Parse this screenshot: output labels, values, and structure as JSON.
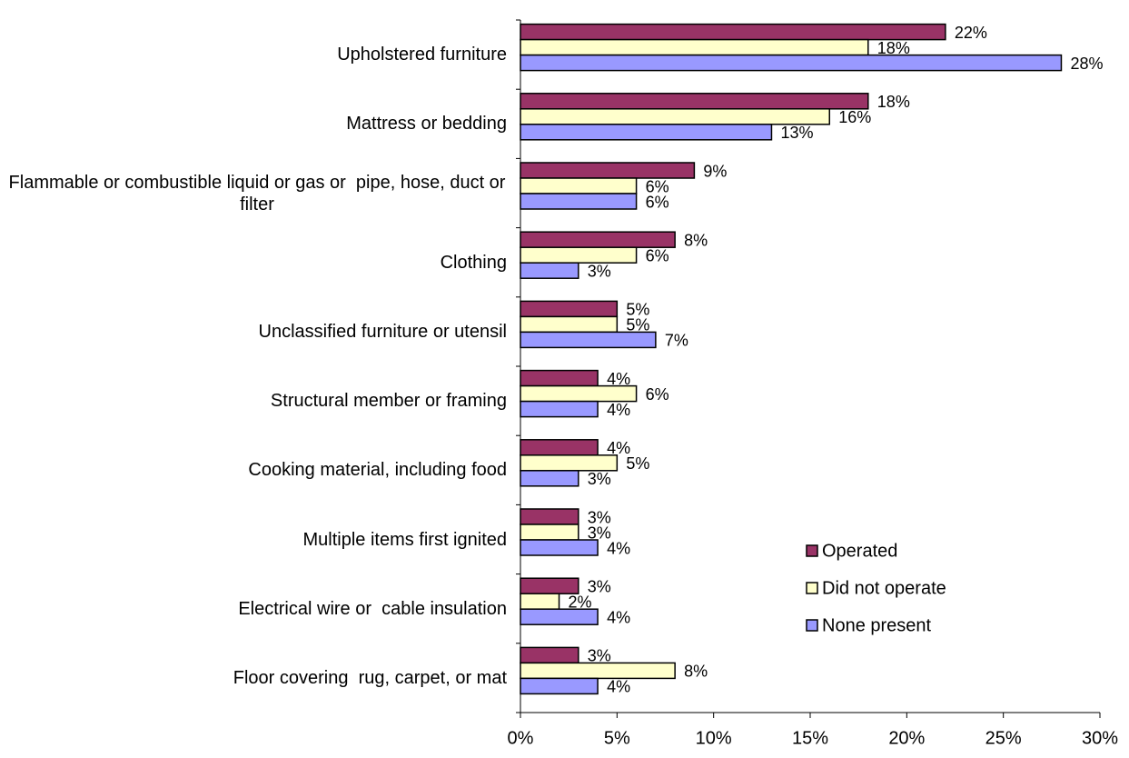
{
  "chart_data": {
    "type": "hbar",
    "categories": [
      "Upholstered furniture",
      "Mattress or bedding",
      "Flammable or combustible liquid or gas or  pipe, hose, duct or filter",
      "Clothing",
      "Unclassified furniture or utensil",
      "Structural member or framing",
      "Cooking material, including food",
      "Multiple items first ignited",
      "Electrical wire or  cable insulation",
      "Floor covering  rug, carpet, or mat"
    ],
    "series": [
      {
        "name": "Operated",
        "color": "#993366",
        "values": [
          22,
          18,
          9,
          8,
          5,
          4,
          4,
          3,
          3,
          3
        ],
        "value_labels": [
          "22%",
          "18%",
          "9%",
          "8%",
          "5%",
          "4%",
          "4%",
          "3%",
          "3%",
          "3%"
        ]
      },
      {
        "name": "Did not operate",
        "color": "#FFFFCC",
        "values": [
          18,
          16,
          6,
          6,
          5,
          6,
          5,
          3,
          2,
          8
        ],
        "value_labels": [
          "18%",
          "16%",
          "6%",
          "6%",
          "5%",
          "6%",
          "5%",
          "3%",
          "2%",
          "8%"
        ]
      },
      {
        "name": "None present",
        "color": "#9999FF",
        "values": [
          28,
          13,
          6,
          3,
          7,
          4,
          3,
          4,
          4,
          4
        ],
        "value_labels": [
          "28%",
          "13%",
          "6%",
          "3%",
          "7%",
          "4%",
          "3%",
          "4%",
          "4%",
          "4%"
        ]
      }
    ],
    "xlim": [
      0,
      30
    ],
    "xticks": [
      {
        "value": 0,
        "label": "0%"
      },
      {
        "value": 5,
        "label": "5%"
      },
      {
        "value": 10,
        "label": "10%"
      },
      {
        "value": 15,
        "label": "15%"
      },
      {
        "value": 20,
        "label": "20%"
      },
      {
        "value": 25,
        "label": "25%"
      },
      {
        "value": 30,
        "label": "30%"
      }
    ],
    "legend": "lower right"
  }
}
